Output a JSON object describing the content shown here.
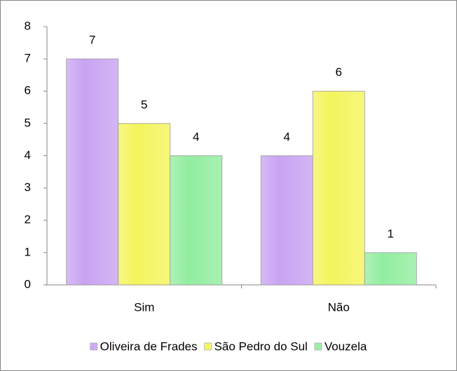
{
  "chart_data": {
    "type": "bar",
    "categories": [
      "Sim",
      "Não"
    ],
    "series": [
      {
        "name": "Oliveira de Frades",
        "color": "#c9a3f2",
        "values": [
          7,
          4
        ]
      },
      {
        "name": "São Pedro do Sul",
        "color": "#f4f45c",
        "values": [
          5,
          6
        ]
      },
      {
        "name": "Vouzela",
        "color": "#92eda0",
        "values": [
          4,
          1
        ]
      }
    ],
    "ylim": [
      0,
      8
    ],
    "yticks": [
      0,
      1,
      2,
      3,
      4,
      5,
      6,
      7,
      8
    ],
    "grid": false,
    "legend": "bottom"
  }
}
